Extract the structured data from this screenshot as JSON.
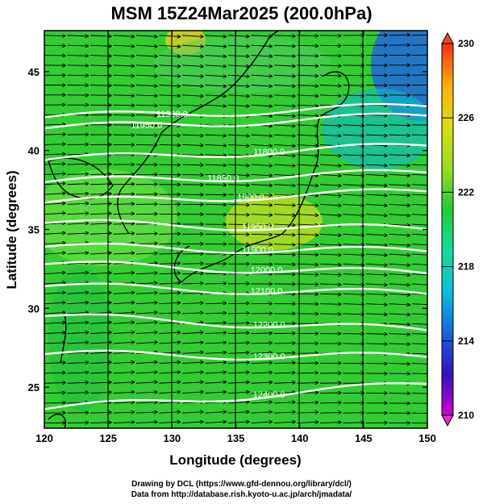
{
  "title": "MSM 15Z24Mar2025 (200.0hPa)",
  "x_axis": {
    "label": "Longitude (degrees)",
    "min": 120,
    "max": 150,
    "ticks": [
      120,
      125,
      130,
      135,
      140,
      145,
      150
    ]
  },
  "y_axis": {
    "label": "Latitude  (degrees)",
    "min": 22.4,
    "max": 47.6,
    "ticks": [
      25,
      30,
      35,
      40,
      45
    ]
  },
  "colorbar": {
    "min": 210,
    "max": 230,
    "labels": [
      210,
      214,
      218,
      222,
      226,
      230
    ],
    "colors": [
      "#cc00cc",
      "#3311bb",
      "#1166dd",
      "#11bbdd",
      "#11dd99",
      "#22cc33",
      "#99dd22",
      "#dddd11",
      "#ffaa11",
      "#ee3311"
    ]
  },
  "contours": [
    {
      "label": "11900.0",
      "lon": 130.0,
      "lat_west": 42.1,
      "lat_east": 42.8
    },
    {
      "label": "11950.0",
      "lon": 128.0,
      "lat_west": 41.4,
      "lat_east": 42.2
    },
    {
      "label": "11800.0",
      "lon": 137.6,
      "lat_west": 39.4,
      "lat_east": 40.3
    },
    {
      "label": "11850.0",
      "lon": 134.0,
      "lat_west": 38.0,
      "lat_east": 38.6
    },
    {
      "label": "11900.0",
      "lon": 136.0,
      "lat_west": 36.7,
      "lat_east": 37.4
    },
    {
      "label": "11950.0",
      "lon": 136.7,
      "lat_west": 35.4,
      "lat_east": 35.0
    },
    {
      "label": "11900.0",
      "lon": 136.7,
      "lat_west": 33.9,
      "lat_east": 33.6
    },
    {
      "label": "12000.0",
      "lon": 137.4,
      "lat_west": 32.8,
      "lat_east": 32.2
    },
    {
      "label": "12100.0",
      "lon": 137.4,
      "lat_west": 31.4,
      "lat_east": 30.9
    },
    {
      "label": "12200.0",
      "lon": 137.6,
      "lat_west": 29.5,
      "lat_east": 28.6
    },
    {
      "label": "12300.0",
      "lon": 137.6,
      "lat_west": 27.1,
      "lat_east": 26.9
    },
    {
      "label": "12400.0",
      "lon": 137.6,
      "lat_west": 23.6,
      "lat_east": 25.2
    }
  ],
  "credits": {
    "line1": "Drawing by DCL (https://www.gfd-dennou.org/library/dcl/)",
    "line2": "Data from http://database.rish.kyoto-u.ac.jp/arch/jmadata/"
  }
}
